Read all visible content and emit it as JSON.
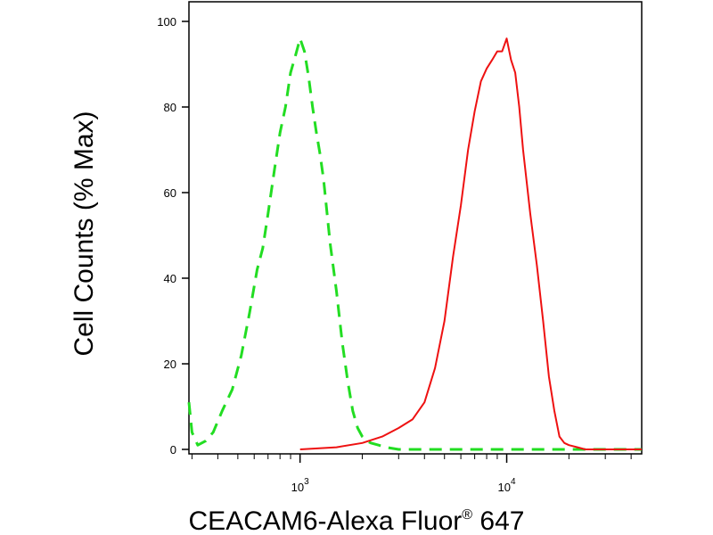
{
  "chart_data": {
    "type": "line",
    "xlabel": "CEACAM6-Alexa Fluor",
    "xlabel_superscript": "®",
    "xlabel_suffix": " 647",
    "ylabel": "Cell Counts (% Max)",
    "x_scale": "log",
    "xlim": [
      290,
      45000
    ],
    "ylim": [
      0,
      100
    ],
    "y_ticks": [
      0,
      20,
      40,
      60,
      80,
      100
    ],
    "x_major_ticks": [
      {
        "value": 1000,
        "base": "10",
        "exp": "3"
      },
      {
        "value": 10000,
        "base": "10",
        "exp": "4"
      }
    ],
    "grid": false,
    "series": [
      {
        "color": "#22dd22",
        "dash": "dashed",
        "x": [
          290,
          300,
          320,
          350,
          380,
          420,
          470,
          520,
          570,
          620,
          660,
          700,
          750,
          800,
          850,
          900,
          950,
          1000,
          1050,
          1100,
          1150,
          1200,
          1250,
          1300,
          1400,
          1500,
          1600,
          1700,
          1800,
          1900,
          2000,
          2100,
          2200,
          2400,
          2600,
          3000,
          3500,
          4500,
          6000,
          10000,
          20000,
          45000
        ],
        "y": [
          11,
          4,
          1,
          2,
          4,
          9,
          14,
          22,
          32,
          42,
          47,
          55,
          65,
          74,
          80,
          88,
          92,
          96,
          93,
          87,
          80,
          74,
          69,
          63,
          48,
          37,
          25,
          16,
          9,
          5,
          3,
          2,
          1.5,
          1,
          0.5,
          0,
          0,
          0,
          0,
          0,
          0,
          0
        ]
      },
      {
        "color": "#ee1111",
        "dash": "solid",
        "x": [
          1000,
          1500,
          2000,
          2500,
          3000,
          3500,
          4000,
          4500,
          5000,
          5500,
          6000,
          6500,
          7000,
          7500,
          8000,
          8500,
          9000,
          9500,
          10000,
          10500,
          11000,
          11500,
          12000,
          13000,
          14000,
          15000,
          16000,
          17000,
          18000,
          19000,
          20000,
          22000,
          24000,
          28000,
          45000
        ],
        "y": [
          0,
          0.5,
          1.5,
          3,
          5,
          7,
          11,
          19,
          30,
          45,
          57,
          70,
          79,
          86,
          89,
          91,
          93,
          93,
          96,
          91,
          88,
          80,
          70,
          55,
          43,
          30,
          17,
          9,
          3,
          1.5,
          1,
          0.5,
          0,
          0,
          0
        ]
      }
    ]
  }
}
